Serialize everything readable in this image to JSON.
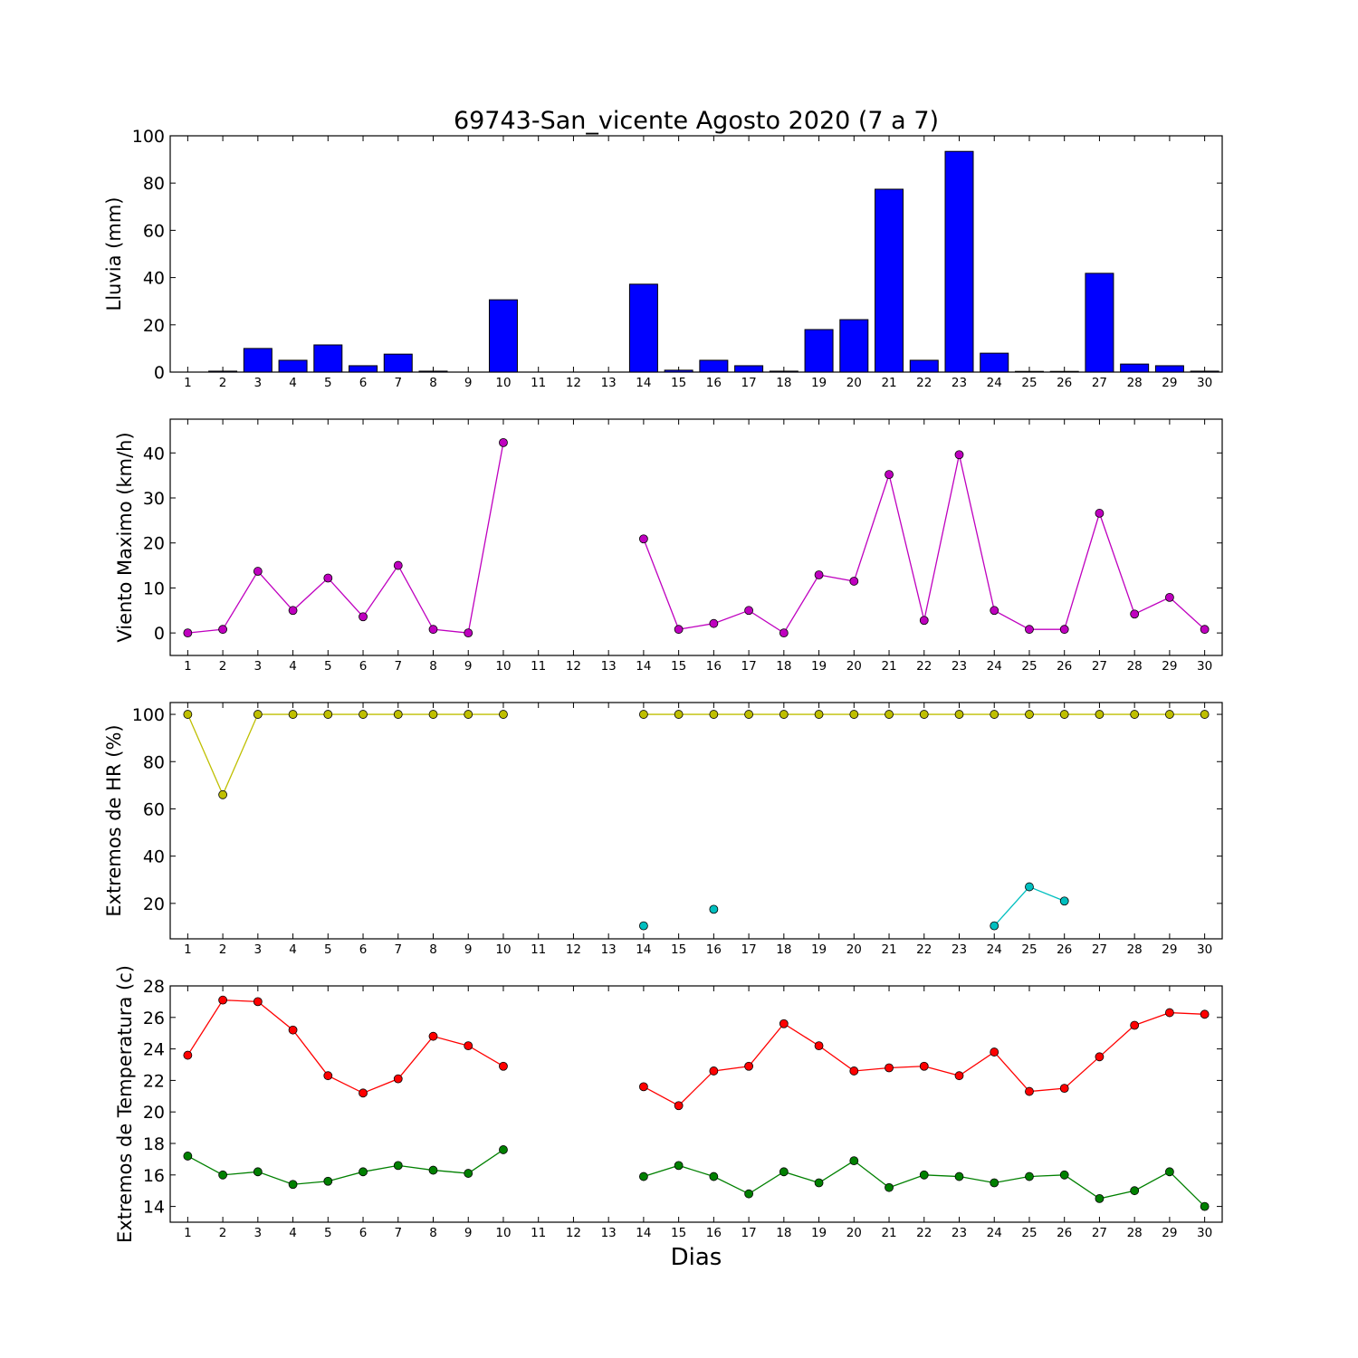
{
  "figure": {
    "title": "69743-San_vicente Agosto 2020  (7 a 7)",
    "xlabel": "Dias"
  },
  "chart_data": [
    {
      "type": "bar",
      "ylabel": "Lluvia (mm)",
      "ylim": [
        0,
        100
      ],
      "yticks": [
        0,
        20,
        40,
        60,
        80,
        100
      ],
      "x": [
        1,
        2,
        3,
        4,
        5,
        6,
        7,
        8,
        9,
        10,
        11,
        12,
        13,
        14,
        15,
        16,
        17,
        18,
        19,
        20,
        21,
        22,
        23,
        24,
        25,
        26,
        27,
        28,
        29,
        30
      ],
      "series": [
        {
          "color": "#0000ff",
          "values": [
            0,
            0.4,
            10,
            5,
            11.5,
            2.7,
            7.6,
            0.4,
            null,
            30.6,
            null,
            null,
            null,
            37.2,
            0.8,
            5,
            2.7,
            0.4,
            18,
            22.2,
            77.4,
            5,
            93.4,
            8,
            0.3,
            0.3,
            41.8,
            3.4,
            2.7,
            0.4
          ]
        }
      ]
    },
    {
      "type": "line",
      "ylabel": "Viento Maximo (km/h)",
      "ylim": [
        -5,
        47.5
      ],
      "yticks": [
        0,
        10,
        20,
        30,
        40
      ],
      "x": [
        1,
        2,
        3,
        4,
        5,
        6,
        7,
        8,
        9,
        10,
        11,
        12,
        13,
        14,
        15,
        16,
        17,
        18,
        19,
        20,
        21,
        22,
        23,
        24,
        25,
        26,
        27,
        28,
        29,
        30
      ],
      "series": [
        {
          "color": "#bf00bf",
          "values": [
            0,
            0.8,
            13.7,
            5,
            12.2,
            3.6,
            15,
            0.8,
            0,
            42.3,
            null,
            null,
            null,
            20.9,
            0.8,
            2.1,
            5,
            0,
            12.9,
            11.5,
            35.2,
            2.8,
            39.6,
            5,
            0.8,
            0.8,
            26.6,
            4.2,
            7.9,
            0.8
          ]
        }
      ]
    },
    {
      "type": "line",
      "ylabel": "Extremos de HR (%)",
      "ylim": [
        5,
        105
      ],
      "yticks": [
        20,
        40,
        60,
        80,
        100
      ],
      "x": [
        1,
        2,
        3,
        4,
        5,
        6,
        7,
        8,
        9,
        10,
        11,
        12,
        13,
        14,
        15,
        16,
        17,
        18,
        19,
        20,
        21,
        22,
        23,
        24,
        25,
        26,
        27,
        28,
        29,
        30
      ],
      "series": [
        {
          "color": "#bfbf00",
          "values": [
            100,
            66,
            100,
            100,
            100,
            100,
            100,
            100,
            100,
            100,
            null,
            null,
            null,
            100,
            100,
            100,
            100,
            100,
            100,
            100,
            100,
            100,
            100,
            100,
            100,
            100,
            100,
            100,
            100,
            100
          ]
        },
        {
          "color": "#00bfbf",
          "values": [
            null,
            null,
            null,
            null,
            null,
            null,
            null,
            null,
            null,
            null,
            null,
            null,
            null,
            10.5,
            null,
            17.5,
            null,
            null,
            null,
            null,
            null,
            null,
            null,
            10.5,
            27,
            21,
            null,
            null,
            null,
            null
          ]
        }
      ]
    },
    {
      "type": "line",
      "ylabel": "Extremos de Temperatura (c)",
      "ylim": [
        13,
        28
      ],
      "yticks": [
        14,
        16,
        18,
        20,
        22,
        24,
        26,
        28
      ],
      "x": [
        1,
        2,
        3,
        4,
        5,
        6,
        7,
        8,
        9,
        10,
        11,
        12,
        13,
        14,
        15,
        16,
        17,
        18,
        19,
        20,
        21,
        22,
        23,
        24,
        25,
        26,
        27,
        28,
        29,
        30
      ],
      "series": [
        {
          "color": "#ff0000",
          "values": [
            23.6,
            27.1,
            27,
            25.2,
            22.3,
            21.2,
            22.1,
            24.8,
            24.2,
            22.9,
            null,
            null,
            null,
            21.6,
            20.4,
            22.6,
            22.9,
            25.6,
            24.2,
            22.6,
            22.8,
            22.9,
            22.3,
            23.8,
            21.3,
            21.5,
            23.5,
            25.5,
            26.3,
            26.2
          ]
        },
        {
          "color": "#008000",
          "values": [
            17.2,
            16,
            16.2,
            15.4,
            15.6,
            16.2,
            16.6,
            16.3,
            16.1,
            17.6,
            null,
            null,
            null,
            15.9,
            16.6,
            15.9,
            14.8,
            16.2,
            15.5,
            16.9,
            15.2,
            16,
            15.9,
            15.5,
            15.9,
            16,
            14.5,
            15,
            16.2,
            14
          ]
        }
      ]
    }
  ]
}
